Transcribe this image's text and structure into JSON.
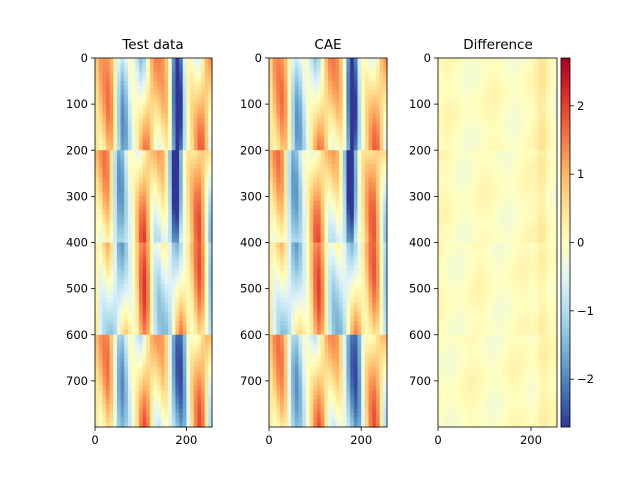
{
  "chart_data": [
    {
      "type": "heatmap",
      "title": "Test data",
      "x_ticks": [
        0,
        200
      ],
      "y_ticks": [
        0,
        100,
        200,
        300,
        400,
        500,
        600,
        700
      ],
      "xlim": [
        0,
        256
      ],
      "ylim": [
        800,
        0
      ],
      "variant": "field"
    },
    {
      "type": "heatmap",
      "title": "CAE",
      "x_ticks": [
        0,
        200
      ],
      "y_ticks": [
        0,
        100,
        200,
        300,
        400,
        500,
        600,
        700
      ],
      "xlim": [
        0,
        256
      ],
      "ylim": [
        800,
        0
      ],
      "variant": "field"
    },
    {
      "type": "heatmap",
      "title": "Difference",
      "x_ticks": [
        0,
        200
      ],
      "y_ticks": [
        0,
        100,
        200,
        300,
        400,
        500,
        600,
        700
      ],
      "xlim": [
        0,
        256
      ],
      "ylim": [
        800,
        0
      ],
      "variant": "difference"
    }
  ],
  "colorbar": {
    "colormap": "RdYlBu_r",
    "range": [
      -2.7,
      2.7
    ],
    "ticks": [
      2,
      1,
      0,
      -1,
      -2
    ],
    "tick_labels": [
      "2",
      "1",
      "0",
      "−1",
      "−2"
    ],
    "colors": [
      "#313695",
      "#4575b4",
      "#74add1",
      "#abd9e9",
      "#e0f3f8",
      "#ffffbf",
      "#fee090",
      "#fdae61",
      "#f46d43",
      "#d73027",
      "#a50026"
    ]
  }
}
